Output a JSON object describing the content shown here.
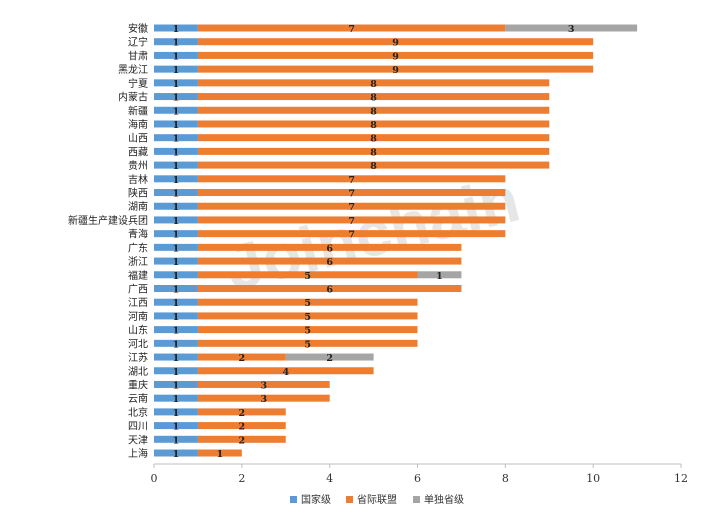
{
  "chart_data": {
    "type": "bar",
    "orientation": "horizontal",
    "stacked": true,
    "title": "",
    "xlabel": "",
    "ylabel": "",
    "xlim": [
      0,
      12
    ],
    "xticks": [
      "0",
      "2",
      "4",
      "6",
      "8",
      "10",
      "12"
    ],
    "grid": false,
    "legend_position": "bottom",
    "categories": [
      "安徽",
      "辽宁",
      "甘肃",
      "黑龙江",
      "宁夏",
      "内蒙古",
      "新疆",
      "海南",
      "山西",
      "西藏",
      "贵州",
      "吉林",
      "陕西",
      "湖南",
      "新疆生产建设兵团",
      "青海",
      "广东",
      "浙江",
      "福建",
      "广西",
      "江西",
      "河南",
      "山东",
      "河北",
      "江苏",
      "湖北",
      "重庆",
      "云南",
      "北京",
      "四川",
      "天津",
      "上海"
    ],
    "series": [
      {
        "name": "国家级",
        "color": "#5b9bd5",
        "values": [
          1,
          1,
          1,
          1,
          1,
          1,
          1,
          1,
          1,
          1,
          1,
          1,
          1,
          1,
          1,
          1,
          1,
          1,
          1,
          1,
          1,
          1,
          1,
          1,
          1,
          1,
          1,
          1,
          1,
          1,
          1,
          1
        ]
      },
      {
        "name": "省际联盟",
        "color": "#ed7d31",
        "values": [
          7,
          9,
          9,
          9,
          8,
          8,
          8,
          8,
          8,
          8,
          8,
          7,
          7,
          7,
          7,
          7,
          6,
          6,
          5,
          6,
          5,
          5,
          5,
          5,
          2,
          4,
          3,
          3,
          2,
          2,
          2,
          1
        ]
      },
      {
        "name": "单独省级",
        "color": "#a5a5a5",
        "values": [
          3,
          0,
          0,
          0,
          0,
          0,
          0,
          0,
          0,
          0,
          0,
          0,
          0,
          0,
          0,
          0,
          0,
          0,
          1,
          0,
          0,
          0,
          0,
          0,
          2,
          0,
          0,
          0,
          0,
          0,
          0,
          0
        ]
      }
    ]
  },
  "watermark": "Joinchain"
}
